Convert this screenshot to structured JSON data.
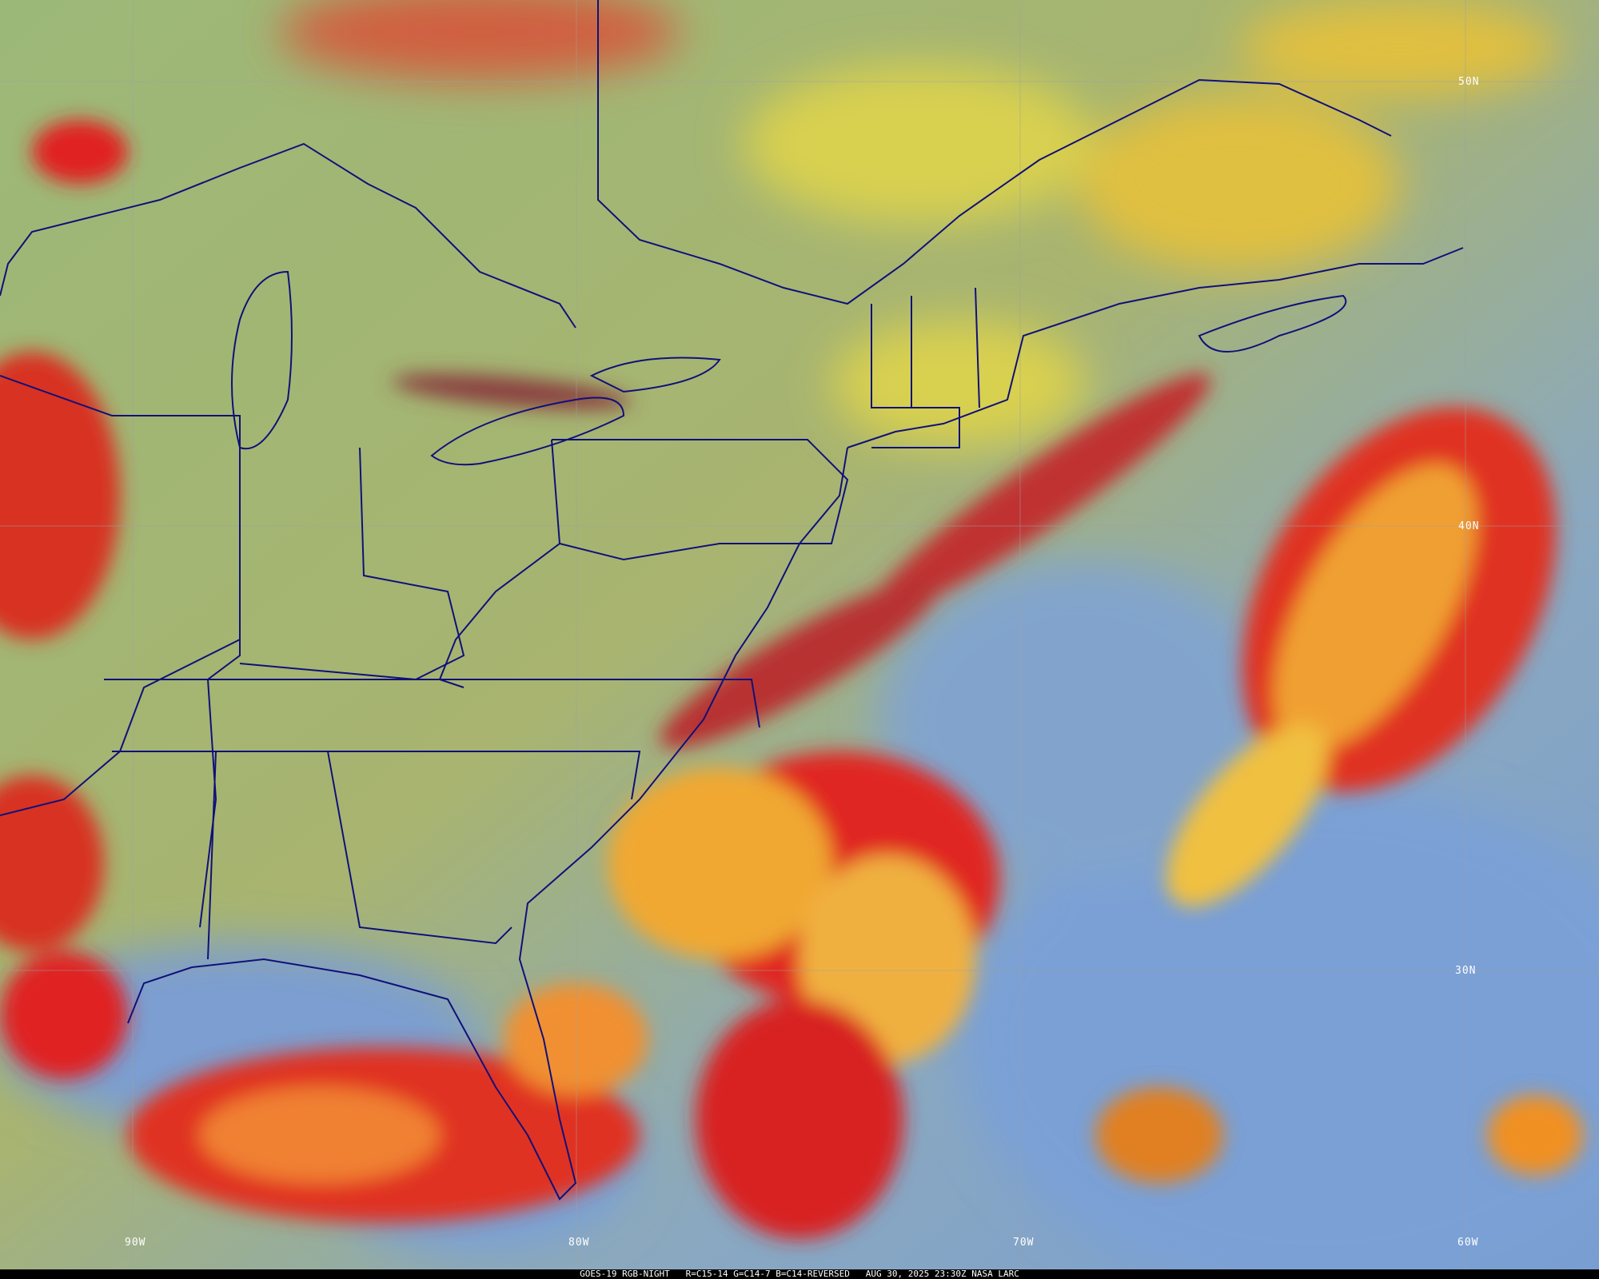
{
  "caption": "GOES-19 RGB-NIGHT   R=C15-14 G=C14-7 B=C14-REVERSED   AUG 30, 2025 23:30Z NASA LARC",
  "lat_labels": [
    "50N",
    "40N",
    "30N"
  ],
  "lon_labels": [
    "90W",
    "80W",
    "70W",
    "60W"
  ],
  "colors": {
    "land_clear": "#a9b86a",
    "ocean_clear": "#7a9fd0",
    "high_cloud": "#e8a020",
    "deep_cloud": "#d02020",
    "borders": "#10107a",
    "grid": "#9a9a9a"
  }
}
